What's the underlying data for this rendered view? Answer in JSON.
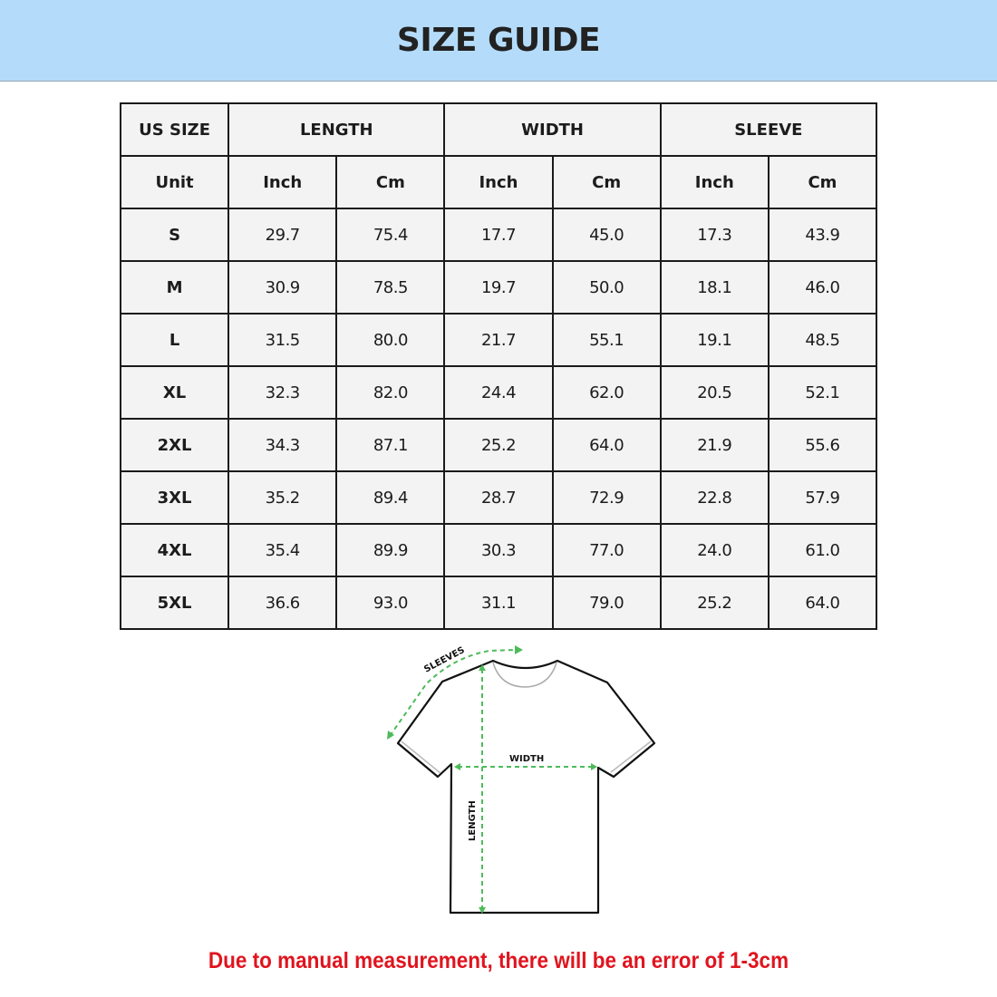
{
  "header": {
    "title": "SIZE GUIDE",
    "background": "#b4dcfa"
  },
  "table": {
    "group_headers": [
      "US SIZE",
      "LENGTH",
      "WIDTH",
      "SLEEVE"
    ],
    "unit_row": [
      "Unit",
      "Inch",
      "Cm",
      "Inch",
      "Cm",
      "Inch",
      "Cm"
    ],
    "rows": [
      [
        "S",
        "29.7",
        "75.4",
        "17.7",
        "45.0",
        "17.3",
        "43.9"
      ],
      [
        "M",
        "30.9",
        "78.5",
        "19.7",
        "50.0",
        "18.1",
        "46.0"
      ],
      [
        "L",
        "31.5",
        "80.0",
        "21.7",
        "55.1",
        "19.1",
        "48.5"
      ],
      [
        "XL",
        "32.3",
        "82.0",
        "24.4",
        "62.0",
        "20.5",
        "52.1"
      ],
      [
        "2XL",
        "34.3",
        "87.1",
        "25.2",
        "64.0",
        "21.9",
        "55.6"
      ],
      [
        "3XL",
        "35.2",
        "89.4",
        "28.7",
        "72.9",
        "22.8",
        "57.9"
      ],
      [
        "4XL",
        "35.4",
        "89.9",
        "30.3",
        "77.0",
        "24.0",
        "61.0"
      ],
      [
        "5XL",
        "36.6",
        "93.0",
        "31.1",
        "79.0",
        "25.2",
        "64.0"
      ]
    ]
  },
  "diagram": {
    "sleeves_label": "SLEEVES",
    "width_label": "WIDTH",
    "length_label": "LENGTH",
    "arrow_color": "#4cbb5a"
  },
  "note": {
    "text": "Due to manual measurement, there will be an error of 1-3cm",
    "color": "#e0141e"
  }
}
